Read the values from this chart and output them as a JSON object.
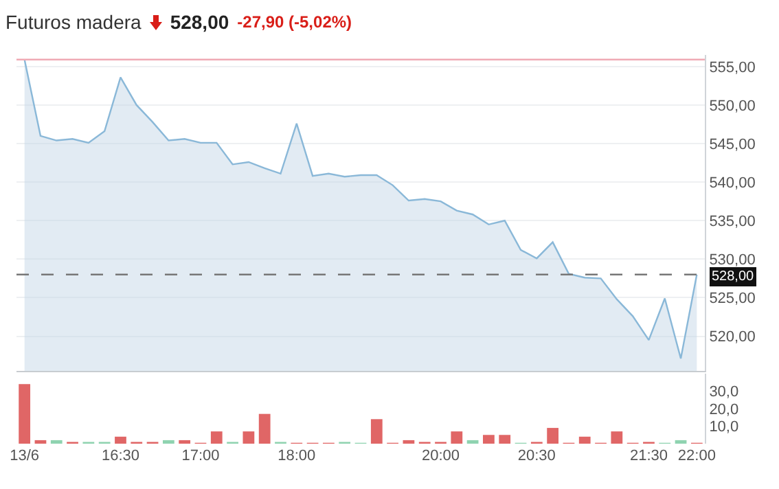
{
  "chart_data": [
    {
      "type": "area",
      "title": "Futuros madera",
      "annotations": [
        "528,00",
        "-27,90 (-5,02%)"
      ],
      "categories": [
        null,
        null,
        null,
        null,
        null,
        null,
        null,
        null,
        null,
        null,
        null,
        null,
        null,
        null,
        null,
        null,
        null,
        null,
        null,
        null,
        null,
        null,
        null,
        null,
        null,
        null,
        null,
        null,
        null,
        null,
        null,
        null,
        null,
        null,
        null,
        null,
        null,
        null,
        null,
        null,
        null,
        null,
        null
      ],
      "series": [
        {
          "color": "#8ab8d8",
          "values": [
            555.9,
            546.0,
            545.4,
            545.6,
            545.1,
            546.6,
            553.6,
            550.0,
            547.8,
            545.4,
            545.6,
            545.1,
            545.1,
            542.3,
            542.6,
            541.8,
            541.1,
            547.6,
            540.8,
            541.1,
            540.7,
            540.9,
            540.9,
            539.6,
            537.6,
            537.8,
            537.5,
            536.3,
            535.8,
            534.5,
            535.0,
            531.2,
            530.1,
            532.2,
            528.1,
            527.6,
            527.5,
            524.8,
            522.6,
            519.5,
            524.9,
            517.1,
            528.0
          ]
        }
      ],
      "grid": "y",
      "ylim": [
        515.5,
        556.5
      ],
      "yticks": [
        {
          "value": 520,
          "label": "520,00"
        },
        {
          "value": 525,
          "label": "525,00"
        },
        {
          "value": 530,
          "label": "530,00"
        },
        {
          "value": 535,
          "label": "535,00"
        },
        {
          "value": 540,
          "label": "540,00"
        },
        {
          "value": 545,
          "label": "545,00"
        },
        {
          "value": 550,
          "label": "550,00"
        },
        {
          "value": 555,
          "label": "555,00"
        }
      ],
      "ref_lines": [
        {
          "axis": "y",
          "value": 555.9,
          "label": null,
          "color": "#f0aab4",
          "line_style": "solid"
        },
        {
          "axis": "y",
          "value": 528,
          "label": "528,00",
          "color": "#777777",
          "line_style": "dashed"
        }
      ],
      "tick_labels": "y"
    },
    {
      "type": "bar",
      "categories": [
        "13/6",
        null,
        null,
        null,
        null,
        null,
        "16:30",
        null,
        null,
        null,
        null,
        "17:00",
        null,
        null,
        null,
        null,
        null,
        "18:00",
        null,
        null,
        null,
        null,
        null,
        null,
        null,
        null,
        "20:00",
        null,
        null,
        null,
        null,
        null,
        "20:30",
        null,
        null,
        null,
        null,
        null,
        null,
        "21:30",
        null,
        null,
        "22:00"
      ],
      "values": [
        34,
        2,
        2,
        1,
        1,
        1,
        4,
        1,
        1,
        2,
        2,
        0.5,
        7,
        1,
        7,
        17,
        1,
        0.5,
        0.5,
        0.5,
        1,
        0.5,
        14,
        0.5,
        2,
        1,
        1,
        7,
        2,
        5,
        5,
        0.5,
        1,
        9,
        0.5,
        4,
        0.5,
        7,
        0.5,
        1,
        0.5,
        2,
        0.5
      ],
      "colors": [
        "#e06666",
        "#e06666",
        "#8fd3b0",
        "#e06666",
        "#8fd3b0",
        "#8fd3b0",
        "#e06666",
        "#e06666",
        "#e06666",
        "#8fd3b0",
        "#e06666",
        "#e06666",
        "#e06666",
        "#8fd3b0",
        "#e06666",
        "#e06666",
        "#8fd3b0",
        "#e06666",
        "#e06666",
        "#e06666",
        "#8fd3b0",
        "#8fd3b0",
        "#e06666",
        "#e06666",
        "#e06666",
        "#e06666",
        "#e06666",
        "#e06666",
        "#8fd3b0",
        "#e06666",
        "#e06666",
        "#8fd3b0",
        "#e06666",
        "#e06666",
        "#e06666",
        "#e06666",
        "#e06666",
        "#e06666",
        "#e06666",
        "#e06666",
        "#8fd3b0",
        "#8fd3b0",
        "#e06666"
      ],
      "ylim": [
        0,
        40
      ],
      "yticks": [
        {
          "value": 10,
          "label": "10,0"
        },
        {
          "value": 20,
          "label": "20,0"
        },
        {
          "value": 30,
          "label": "30,0"
        }
      ]
    }
  ]
}
